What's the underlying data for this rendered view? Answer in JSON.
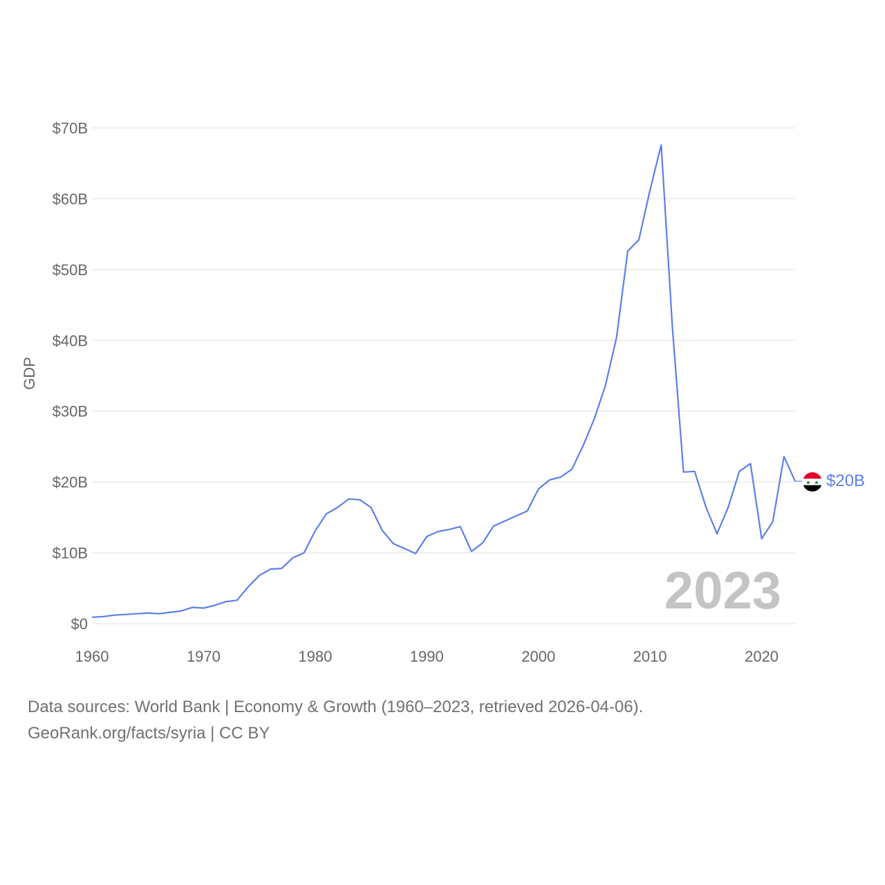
{
  "colors": {
    "line": "#5b7fe8",
    "grid": "#e6e6e6",
    "text": "#666666",
    "year_watermark": "#c4c4c4"
  },
  "chart_data": {
    "type": "line",
    "title": "",
    "ylabel": "GDP",
    "xlabel": "",
    "x_ticks": [
      "1960",
      "1970",
      "1980",
      "1990",
      "2000",
      "2010",
      "2020"
    ],
    "y_ticks": [
      {
        "value": 0,
        "label": "$0"
      },
      {
        "value": 10,
        "label": "$10B"
      },
      {
        "value": 20,
        "label": "$20B"
      },
      {
        "value": 30,
        "label": "$30B"
      },
      {
        "value": 40,
        "label": "$40B"
      },
      {
        "value": 50,
        "label": "$50B"
      },
      {
        "value": 60,
        "label": "$60B"
      },
      {
        "value": 70,
        "label": "$70B"
      }
    ],
    "xlim": [
      1960,
      2023
    ],
    "ylim": [
      0,
      70
    ],
    "units": "billions USD",
    "series": [
      {
        "name": "Syria GDP",
        "x": [
          1960,
          1961,
          1962,
          1963,
          1964,
          1965,
          1966,
          1967,
          1968,
          1969,
          1970,
          1971,
          1972,
          1973,
          1974,
          1975,
          1976,
          1977,
          1978,
          1979,
          1980,
          1981,
          1982,
          1983,
          1984,
          1985,
          1986,
          1987,
          1988,
          1989,
          1990,
          1991,
          1992,
          1993,
          1994,
          1995,
          1996,
          1997,
          1998,
          1999,
          2000,
          2001,
          2002,
          2003,
          2004,
          2005,
          2006,
          2007,
          2008,
          2009,
          2010,
          2011,
          2012,
          2013,
          2014,
          2015,
          2016,
          2017,
          2018,
          2019,
          2020,
          2021,
          2022,
          2023
        ],
        "values": [
          0.9,
          1.0,
          1.2,
          1.3,
          1.4,
          1.5,
          1.4,
          1.6,
          1.8,
          2.3,
          2.2,
          2.6,
          3.1,
          3.3,
          5.2,
          6.8,
          7.7,
          7.8,
          9.3,
          10.0,
          13.1,
          15.5,
          16.4,
          17.6,
          17.5,
          16.4,
          13.2,
          11.3,
          10.6,
          9.9,
          12.3,
          13.0,
          13.3,
          13.7,
          10.2,
          11.4,
          13.8,
          14.5,
          15.2,
          15.9,
          19.0,
          20.3,
          20.7,
          21.8,
          25.1,
          28.9,
          33.6,
          40.4,
          52.6,
          54.2,
          61.2,
          67.6,
          42.0,
          21.4,
          21.5,
          16.5,
          12.7,
          16.4,
          21.5,
          22.6,
          12.0,
          14.4,
          23.6,
          20.1
        ]
      }
    ],
    "end_label": "$20B",
    "current_year": "2023"
  },
  "footer": {
    "line1": "Data sources: World Bank | Economy & Growth (1960–2023, retrieved 2026-04-06).",
    "line2": "GeoRank.org/facts/syria | CC BY"
  }
}
